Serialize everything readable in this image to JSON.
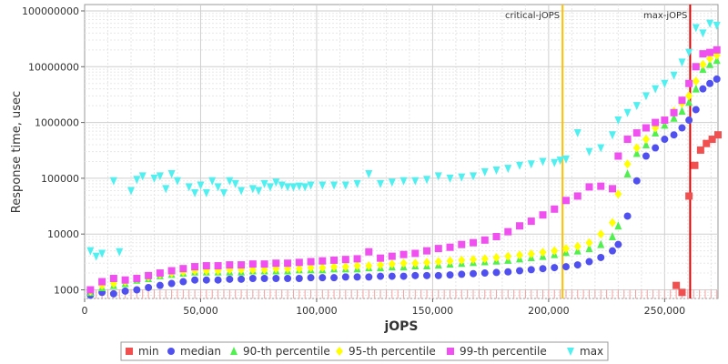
{
  "chart_data": {
    "type": "scatter",
    "xlabel": "jOPS",
    "ylabel": "Response time, usec",
    "xlim": [
      0,
      273000
    ],
    "ylim": [
      700,
      130000000
    ],
    "yscale": "log",
    "grid": true,
    "legend_position": "bottom",
    "x_ticks": [
      0,
      50000,
      100000,
      150000,
      200000,
      250000
    ],
    "x_tick_labels": [
      "0",
      "50,000",
      "100,000",
      "150,000",
      "200,000",
      "250,000"
    ],
    "y_ticks": [
      1000,
      10000,
      100000,
      1000000,
      10000000,
      100000000
    ],
    "y_tick_labels": [
      "1000",
      "10000",
      "100000",
      "1000000",
      "10000000",
      "100000000"
    ],
    "annotations": [
      {
        "label": "critical-jOPS",
        "x": 206000,
        "color": "#ffc000"
      },
      {
        "label": "max-jOPS",
        "x": 261000,
        "color": "#dd0000"
      }
    ],
    "series": [
      {
        "name": "min",
        "marker": "square",
        "color": "#f05050",
        "x": [
          255000,
          257500,
          260500,
          263000,
          265500,
          268000,
          270500,
          273000
        ],
        "y": [
          1200,
          900,
          48000,
          170000,
          320000,
          420000,
          500000,
          600000
        ]
      },
      {
        "name": "median",
        "marker": "circle",
        "color": "#5050f0",
        "x": [
          2500,
          7500,
          12500,
          17500,
          22500,
          27500,
          32500,
          37500,
          42500,
          47500,
          52500,
          57500,
          62500,
          67500,
          72500,
          77500,
          82500,
          87500,
          92500,
          97500,
          102500,
          107500,
          112500,
          117500,
          122500,
          127500,
          132500,
          137500,
          142500,
          147500,
          152500,
          157500,
          162500,
          167500,
          172500,
          177500,
          182500,
          187500,
          192500,
          197500,
          202500,
          207500,
          212500,
          217500,
          222500,
          227500,
          230000,
          234000,
          238000,
          242000,
          246000,
          250000,
          254000,
          257500,
          260500,
          263500,
          266500,
          269500,
          272500
        ],
        "y": [
          800,
          900,
          850,
          950,
          1000,
          1100,
          1200,
          1300,
          1400,
          1500,
          1500,
          1500,
          1550,
          1550,
          1600,
          1600,
          1600,
          1600,
          1600,
          1650,
          1650,
          1650,
          1700,
          1700,
          1700,
          1750,
          1750,
          1750,
          1800,
          1800,
          1800,
          1850,
          1900,
          1950,
          2000,
          2050,
          2100,
          2200,
          2300,
          2400,
          2500,
          2600,
          2800,
          3200,
          3800,
          5000,
          6500,
          21000,
          90000,
          250000,
          350000,
          500000,
          600000,
          800000,
          1100000,
          1700000,
          4000000,
          5000000,
          6000000
        ]
      },
      {
        "name": "90-th percentile",
        "marker": "triangle-up",
        "color": "#50f050",
        "x": [
          2500,
          7500,
          12500,
          17500,
          22500,
          27500,
          32500,
          37500,
          42500,
          47500,
          52500,
          57500,
          62500,
          67500,
          72500,
          77500,
          82500,
          87500,
          92500,
          97500,
          102500,
          107500,
          112500,
          117500,
          122500,
          127500,
          132500,
          137500,
          142500,
          147500,
          152500,
          157500,
          162500,
          167500,
          172500,
          177500,
          182500,
          187500,
          192500,
          197500,
          202500,
          207500,
          212500,
          217500,
          222500,
          227500,
          230000,
          234000,
          238000,
          242000,
          246000,
          250000,
          254000,
          257500,
          260500,
          263500,
          266500,
          269500,
          272500
        ],
        "y": [
          900,
          1100,
          1200,
          1300,
          1500,
          1600,
          1800,
          1900,
          2000,
          2100,
          2100,
          2100,
          2100,
          2100,
          2200,
          2200,
          2200,
          2200,
          2300,
          2300,
          2300,
          2400,
          2400,
          2400,
          2500,
          2500,
          2600,
          2600,
          2700,
          2700,
          2800,
          2900,
          3000,
          3100,
          3200,
          3300,
          3400,
          3600,
          3800,
          4000,
          4300,
          4700,
          5000,
          5500,
          6500,
          9000,
          14000,
          120000,
          280000,
          400000,
          650000,
          900000,
          1200000,
          1600000,
          2300000,
          4000000,
          9000000,
          11000000,
          13000000
        ]
      },
      {
        "name": "95-th percentile",
        "marker": "diamond",
        "color": "#ffff00",
        "x": [
          2500,
          7500,
          12500,
          17500,
          22500,
          27500,
          32500,
          37500,
          42500,
          47500,
          52500,
          57500,
          62500,
          67500,
          72500,
          77500,
          82500,
          87500,
          92500,
          97500,
          102500,
          107500,
          112500,
          117500,
          122500,
          127500,
          132500,
          137500,
          142500,
          147500,
          152500,
          157500,
          162500,
          167500,
          172500,
          177500,
          182500,
          187500,
          192500,
          197500,
          202500,
          207500,
          212500,
          217500,
          222500,
          227500,
          230000,
          234000,
          238000,
          242000,
          246000,
          250000,
          254000,
          257500,
          260500,
          263500,
          266500,
          269500,
          272500
        ],
        "y": [
          950,
          1200,
          1300,
          1400,
          1600,
          1700,
          1900,
          2000,
          2100,
          2200,
          2200,
          2200,
          2300,
          2300,
          2300,
          2300,
          2400,
          2400,
          2400,
          2500,
          2500,
          2600,
          2600,
          2700,
          2700,
          2800,
          2900,
          3000,
          3000,
          3100,
          3200,
          3300,
          3400,
          3500,
          3600,
          3800,
          4000,
          4200,
          4400,
          4700,
          5000,
          5500,
          6000,
          7000,
          10000,
          16000,
          52000,
          180000,
          350000,
          500000,
          800000,
          1100000,
          1600000,
          2200000,
          3000000,
          5500000,
          11000000,
          14000000,
          16000000
        ]
      },
      {
        "name": "99-th percentile",
        "marker": "square",
        "color": "#f050f0",
        "x": [
          2500,
          7500,
          12500,
          17500,
          22500,
          27500,
          32500,
          37500,
          42500,
          47500,
          52500,
          57500,
          62500,
          67500,
          72500,
          77500,
          82500,
          87500,
          92500,
          97500,
          102500,
          107500,
          112500,
          117500,
          122500,
          127500,
          132500,
          137500,
          142500,
          147500,
          152500,
          157500,
          162500,
          167500,
          172500,
          177500,
          182500,
          187500,
          192500,
          197500,
          202500,
          207500,
          212500,
          217500,
          222500,
          227500,
          230000,
          234000,
          238000,
          242000,
          246000,
          250000,
          254000,
          257500,
          260500,
          263500,
          266500,
          269500,
          272500
        ],
        "y": [
          1000,
          1400,
          1600,
          1500,
          1600,
          1800,
          2000,
          2200,
          2400,
          2600,
          2700,
          2700,
          2800,
          2800,
          2900,
          2900,
          3000,
          3000,
          3100,
          3200,
          3300,
          3400,
          3500,
          3600,
          4800,
          3700,
          4000,
          4300,
          4500,
          5000,
          5500,
          5800,
          6500,
          7000,
          7800,
          9000,
          11000,
          14000,
          17000,
          22000,
          28000,
          40000,
          48000,
          70000,
          72000,
          65000,
          250000,
          500000,
          650000,
          800000,
          1000000,
          1100000,
          1500000,
          2500000,
          5000000,
          10000000,
          17000000,
          18000000,
          20000000
        ]
      },
      {
        "name": "max",
        "marker": "triangle-down",
        "color": "#50f0f0",
        "x": [
          2500,
          5000,
          7500,
          12500,
          15000,
          20000,
          22500,
          25000,
          30000,
          32500,
          35000,
          37500,
          40000,
          45000,
          47500,
          50000,
          52500,
          55000,
          57500,
          60000,
          62500,
          65000,
          67500,
          72500,
          75000,
          77500,
          80000,
          82500,
          85000,
          87500,
          90000,
          92500,
          95000,
          97500,
          102500,
          107500,
          112500,
          117500,
          122500,
          127500,
          132500,
          137500,
          142500,
          147500,
          152500,
          157500,
          162500,
          167500,
          172500,
          177500,
          182500,
          187500,
          192500,
          197500,
          202500,
          205000,
          207500,
          212500,
          217500,
          222500,
          227500,
          230000,
          234000,
          238000,
          242000,
          246000,
          250000,
          254000,
          257500,
          260500,
          263500,
          266500,
          269500,
          272500
        ],
        "y": [
          5000,
          4000,
          4500,
          90000,
          4800,
          60000,
          95000,
          110000,
          100000,
          110000,
          65000,
          120000,
          90000,
          70000,
          55000,
          75000,
          55000,
          90000,
          70000,
          55000,
          90000,
          80000,
          60000,
          65000,
          60000,
          80000,
          70000,
          85000,
          75000,
          70000,
          70000,
          72000,
          70000,
          75000,
          75000,
          75000,
          75000,
          80000,
          120000,
          80000,
          85000,
          90000,
          90000,
          95000,
          110000,
          100000,
          105000,
          110000,
          130000,
          140000,
          150000,
          170000,
          180000,
          200000,
          190000,
          210000,
          220000,
          650000,
          300000,
          350000,
          600000,
          1100000,
          1500000,
          2000000,
          3000000,
          4000000,
          5000000,
          7000000,
          12000000,
          18000000,
          50000000,
          40000000,
          60000000,
          55000000
        ]
      }
    ]
  }
}
